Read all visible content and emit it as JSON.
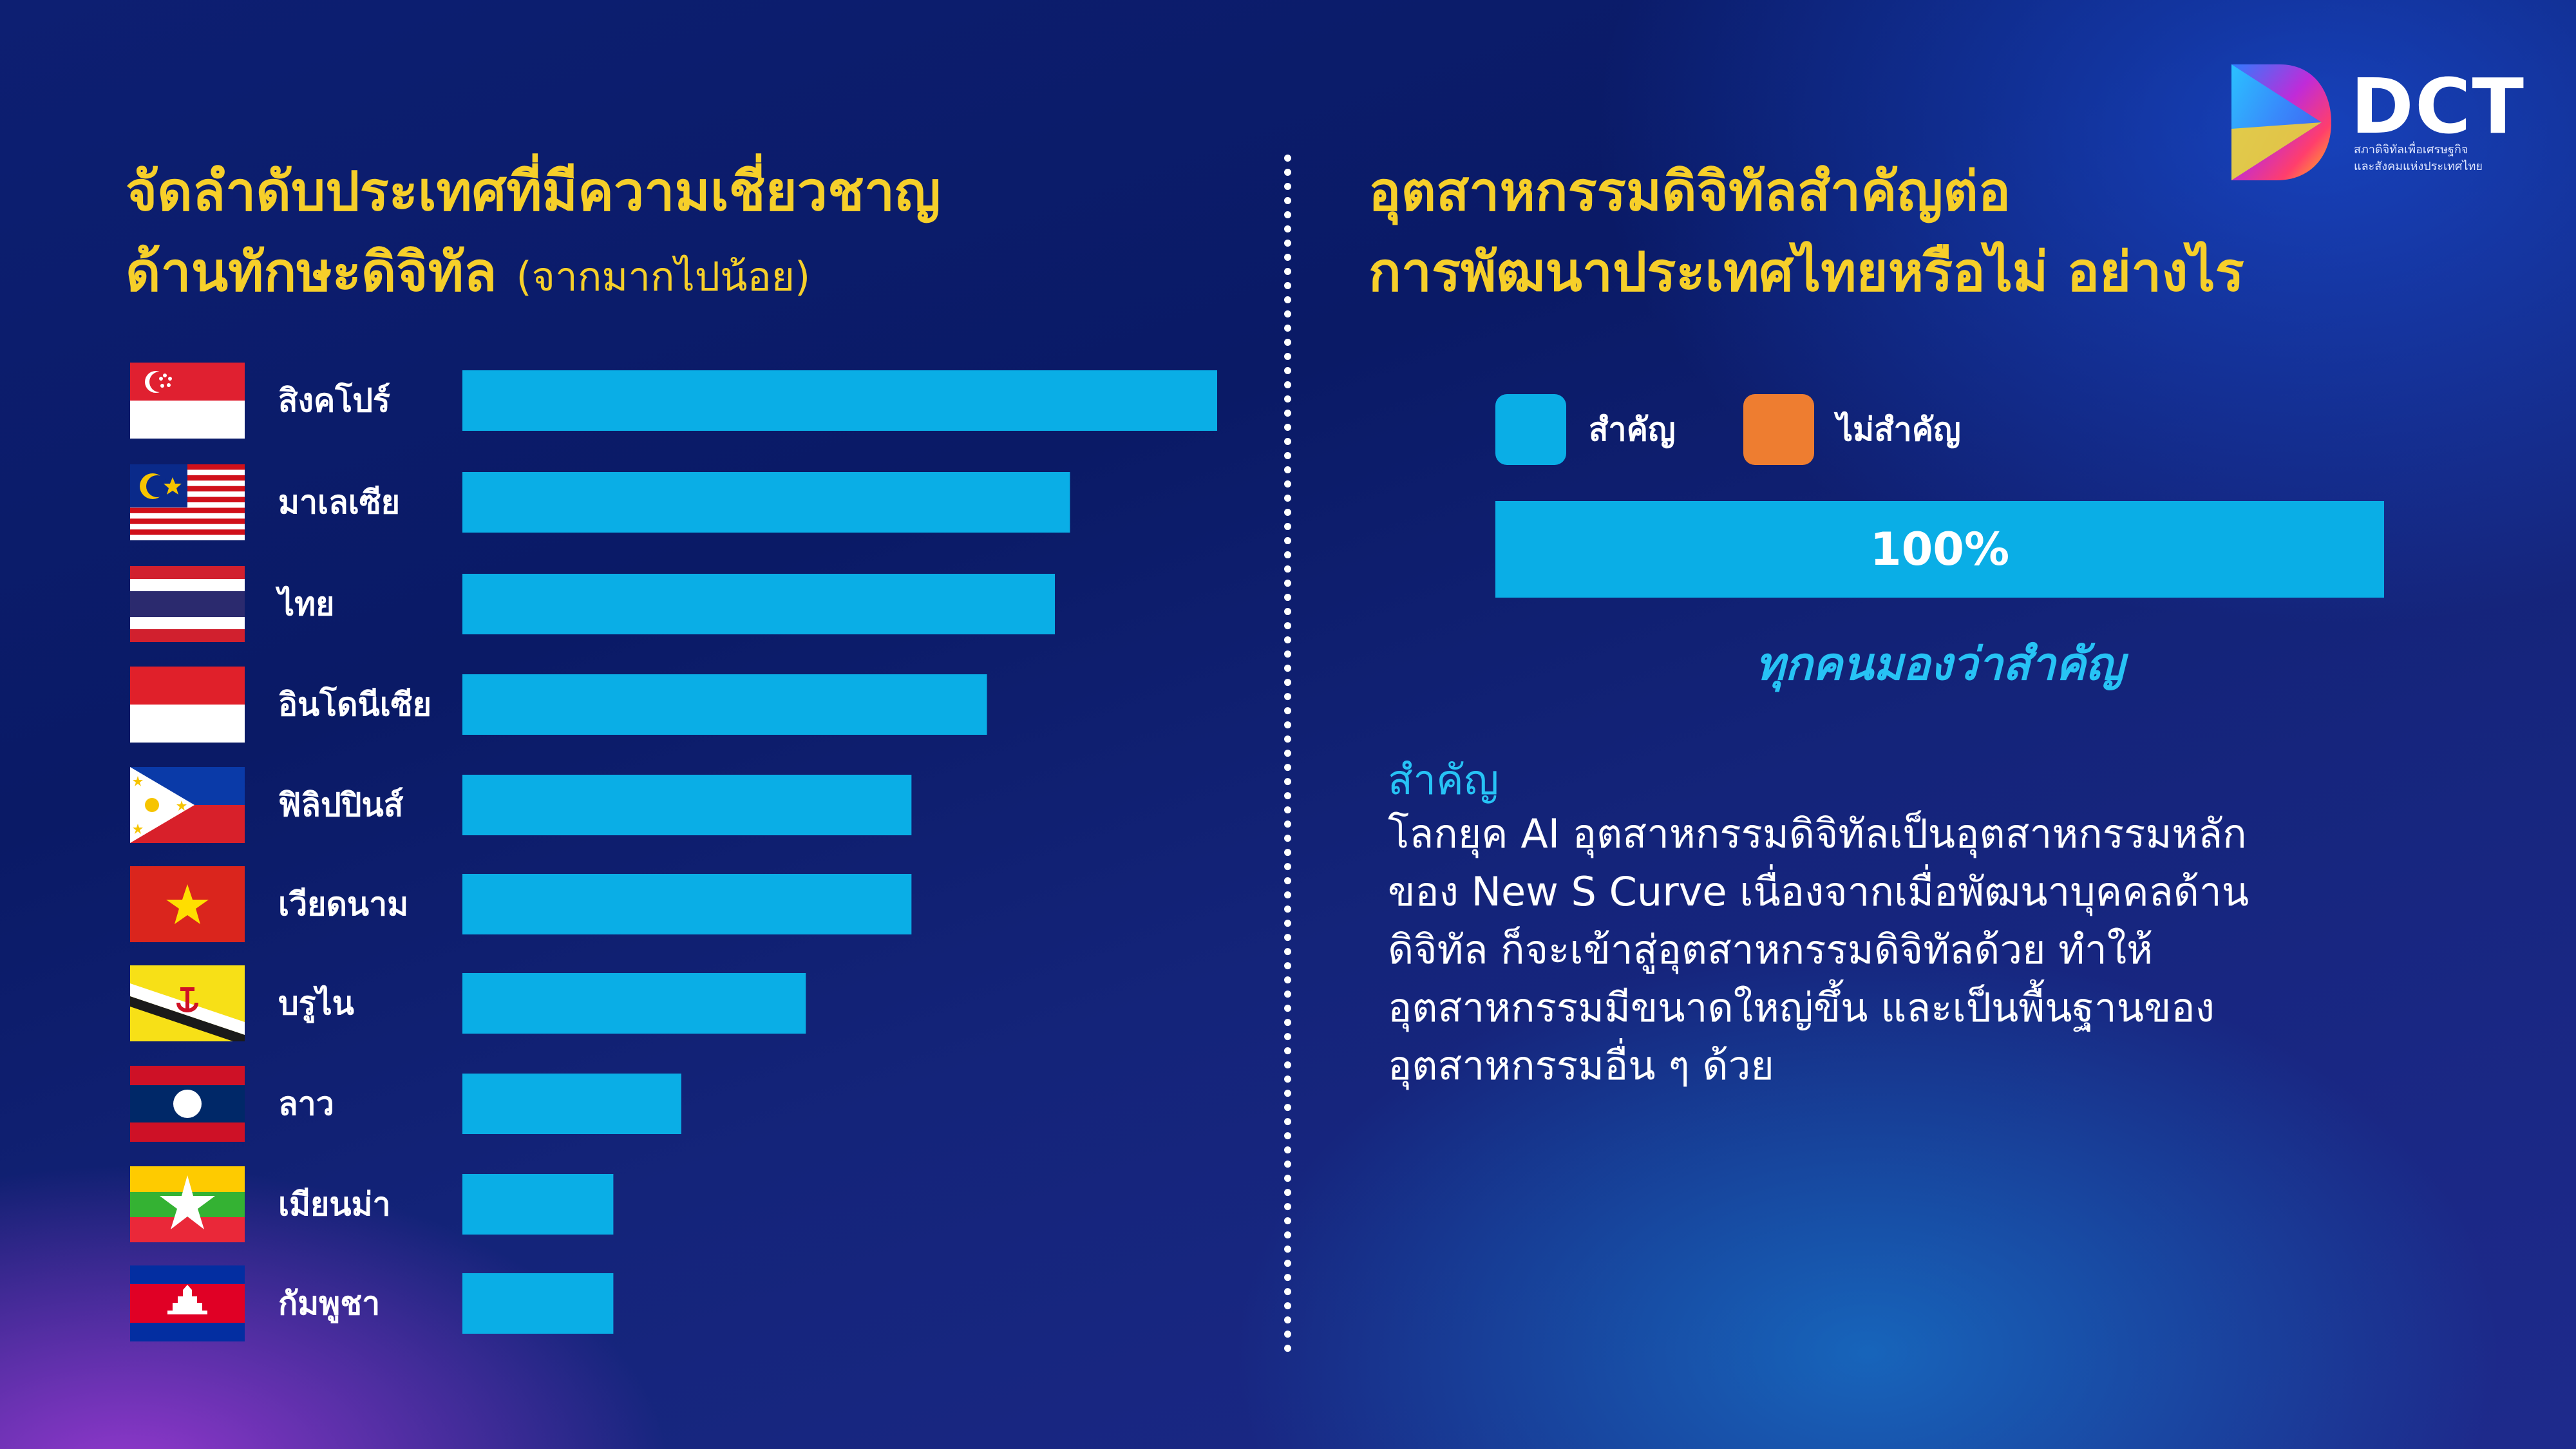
{
  "left_panel": {
    "title_line1": "จัดลำดับประเทศที่มีความเชี่ยวชาญ",
    "title_line2": "ด้านทักษะดิจิทัล",
    "title_sub": "(จากมากไปน้อย)"
  },
  "right_panel": {
    "title_line1": "อุตสาหกรรมดิจิทัลสำคัญต่อ",
    "title_line2": "การพัฒนาประเทศไทยหรือไม่ อย่างไร",
    "legend": [
      {
        "label": "สำคัญ",
        "color": "#0aaee6"
      },
      {
        "label": "ไม่สำคัญ",
        "color": "#ee7d30"
      }
    ],
    "bar_label": "100%",
    "caption": "ทุกคนมองว่าสำคัญ",
    "body_heading": "สำคัญ",
    "body_lines": [
      "โลกยุค AI อุตสาหกรรมดิจิทัลเป็นอุตสาหกรรมหลัก",
      "ของ New S Curve เนื่องจากเมื่อพัฒนาบุคคลด้าน",
      "ดิจิทัล ก็จะเข้าสู่อุตสาหกรรมดิจิทัลด้วย ทำให้",
      "อุตสาหกรรมมีขนาดใหญ่ขึ้น และเป็นพื้นฐานของ",
      "อุตสาหกรรมอื่น ๆ ด้วย"
    ]
  },
  "logo": {
    "text": "DCT",
    "sub_line1": "สภาดิจิทัลเพื่อเศรษฐกิจ",
    "sub_line2": "และสังคมแห่งประเทศไทย"
  },
  "chart_data": [
    {
      "type": "bar",
      "orientation": "horizontal",
      "categories": [
        "สิงคโปร์",
        "มาเลเซีย",
        "ไทย",
        "อินโดนีเซีย",
        "ฟิลิปปินส์",
        "เวียดนาม",
        "บรูไน",
        "ลาว",
        "เมียนม่า",
        "กัมพูชา"
      ],
      "values": [
        100,
        80.5,
        78.5,
        69.5,
        59.5,
        59.5,
        45.5,
        29,
        20,
        20
      ],
      "color": "#0aaee6",
      "flags": [
        "singapore-flag",
        "malaysia-flag",
        "thailand-flag",
        "indonesia-flag",
        "philippines-flag",
        "vietnam-flag",
        "brunei-flag",
        "laos-flag",
        "myanmar-flag",
        "cambodia-flag"
      ],
      "grid": false
    },
    {
      "type": "bar",
      "orientation": "horizontal",
      "categories": [
        "สำคัญ",
        "ไม่สำคัญ"
      ],
      "values": [
        100,
        0
      ],
      "data_labels": [
        "100%"
      ],
      "stacked": true
    }
  ]
}
